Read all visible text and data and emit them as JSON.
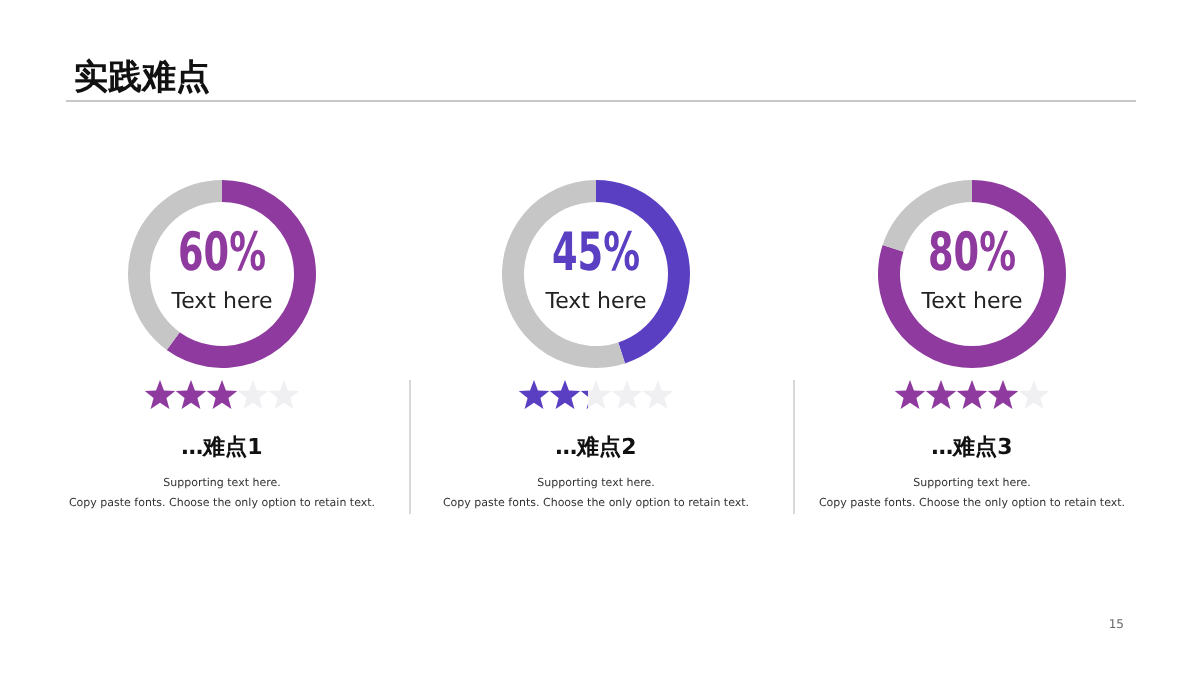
{
  "chart_data": [
    {
      "type": "donut",
      "title": "…难点1",
      "categories": [
        null,
        null
      ],
      "values": [
        60,
        40
      ],
      "colors": [
        "#8e3a9e",
        "#c6c6c6"
      ],
      "value_labels": [
        "60%",
        null
      ],
      "annotations": [
        "Text here",
        "Supporting text here.",
        "Copy paste fonts. Choose the only option to retain text."
      ]
    },
    {
      "type": "donut",
      "title": "…难点2",
      "categories": [
        null,
        null
      ],
      "values": [
        45,
        55
      ],
      "colors": [
        "#5b3fc2",
        "#c6c6c6"
      ],
      "value_labels": [
        "45%",
        null
      ],
      "annotations": [
        "Text here",
        "Supporting text here.",
        "Copy paste fonts. Choose the only option to retain text."
      ]
    },
    {
      "type": "donut",
      "title": "…难点3",
      "categories": [
        null,
        null
      ],
      "values": [
        80,
        20
      ],
      "colors": [
        "#8e3a9e",
        "#c6c6c6"
      ],
      "value_labels": [
        "80%",
        null
      ],
      "annotations": [
        "Text here",
        "Supporting text here.",
        "Copy paste fonts. Choose the only option to retain text."
      ]
    },
    {
      "type": "other",
      "title": "实践难点",
      "annotations": [
        "15"
      ]
    }
  ]
}
